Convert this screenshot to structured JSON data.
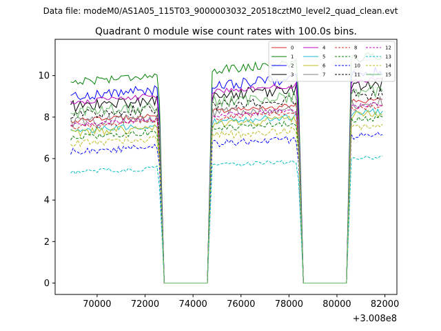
{
  "chart_data": {
    "type": "line",
    "suptitle": "Data file: modeM0/AS1A05_115T03_9000003032_20518cztM0_level2_quad_clean.evt",
    "title": "Quadrant 0 module wise count rates with 100.0s bins.",
    "xlabel": "",
    "ylabel": "",
    "x_offset_label": "+3.008e8",
    "xlim": [
      68250,
      82500
    ],
    "ylim": [
      -0.55,
      11.75
    ],
    "xticks": [
      70000,
      72000,
      74000,
      76000,
      78000,
      80000,
      82000
    ],
    "xtick_labels": [
      "70000",
      "72000",
      "74000",
      "76000",
      "78000",
      "80000",
      "82000"
    ],
    "yticks": [
      0,
      2,
      4,
      6,
      8,
      10
    ],
    "ytick_labels": [
      "0",
      "2",
      "4",
      "6",
      "8",
      "10"
    ],
    "grid": false,
    "legend_location": "top-right",
    "legend_columns": 4,
    "segments": [
      {
        "x_start": 68900,
        "x_end": 72500,
        "active": true
      },
      {
        "x_start": 72500,
        "x_end": 72800,
        "active": "drop"
      },
      {
        "x_start": 72800,
        "x_end": 74600,
        "active": false
      },
      {
        "x_start": 74600,
        "x_end": 74800,
        "active": "rise"
      },
      {
        "x_start": 74800,
        "x_end": 78300,
        "active": true
      },
      {
        "x_start": 78300,
        "x_end": 78600,
        "active": "drop"
      },
      {
        "x_start": 78600,
        "x_end": 80400,
        "active": false
      },
      {
        "x_start": 80400,
        "x_end": 80600,
        "active": "rise"
      },
      {
        "x_start": 80600,
        "x_end": 81900,
        "active": true
      }
    ],
    "series": [
      {
        "name": "0",
        "color": "#d62728",
        "dash": "solid",
        "base_level": 7.9
      },
      {
        "name": "1",
        "color": "#008000",
        "dash": "solid",
        "base_level": 9.8
      },
      {
        "name": "2",
        "color": "#0000ff",
        "dash": "solid",
        "base_level": 9.1
      },
      {
        "name": "3",
        "color": "#000000",
        "dash": "solid",
        "base_level": 8.6
      },
      {
        "name": "4",
        "color": "#bf00bf",
        "dash": "solid",
        "base_level": 8.8
      },
      {
        "name": "5",
        "color": "#17becf",
        "dash": "solid",
        "base_level": 7.4
      },
      {
        "name": "6",
        "color": "#bcbd22",
        "dash": "solid",
        "base_level": 7.3
      },
      {
        "name": "7",
        "color": "#7f7f7f",
        "dash": "solid",
        "base_level": 7.8
      },
      {
        "name": "8",
        "color": "#d62728",
        "dash": "dashed",
        "base_level": 7.6
      },
      {
        "name": "9",
        "color": "#008000",
        "dash": "dashed",
        "base_level": 7.1
      },
      {
        "name": "10",
        "color": "#0000ff",
        "dash": "dashed",
        "base_level": 6.4
      },
      {
        "name": "11",
        "color": "#000000",
        "dash": "dashed",
        "base_level": 8.2
      },
      {
        "name": "12",
        "color": "#bf00bf",
        "dash": "dashed",
        "base_level": 7.7
      },
      {
        "name": "13",
        "color": "#00bfbf",
        "dash": "dashed",
        "base_level": 5.4
      },
      {
        "name": "14",
        "color": "#bcbd22",
        "dash": "dashed",
        "base_level": 6.8
      },
      {
        "name": "15",
        "color": "#66bb66",
        "dash": "solid",
        "base_level": 8.3
      }
    ]
  }
}
